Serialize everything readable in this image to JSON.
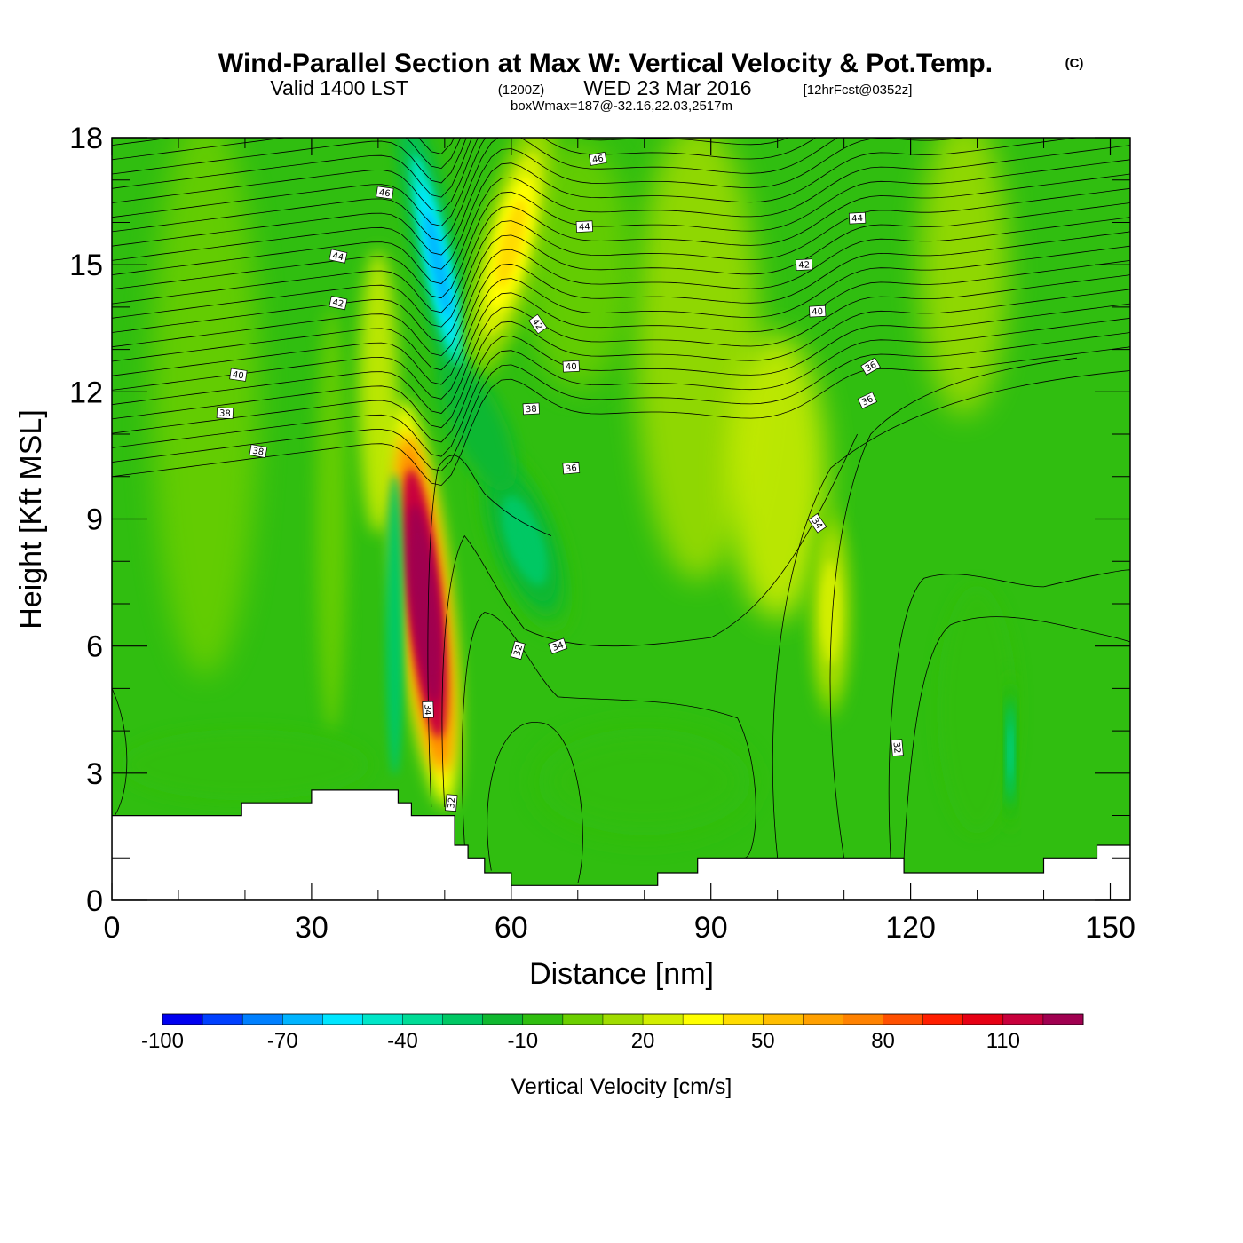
{
  "chart_data": {
    "type": "heatmap",
    "title": "Wind-Parallel Section at Max W: Vertical Velocity & Pot.Temp.",
    "copyright": "(C)",
    "subtitle_valid": "Valid 1400 LST",
    "subtitle_zulu": "(1200Z)",
    "subtitle_date": "WED 23 Mar 2016",
    "subtitle_fcst": "[12hrFcst@0352z]",
    "box_info": "boxWmax=187@-32.16,22.03,2517m",
    "xlabel": "Distance [nm]",
    "ylabel": "Height [Kft MSL]",
    "xlim": [
      0,
      153
    ],
    "ylim": [
      0,
      18
    ],
    "x_ticks": [
      0,
      30,
      60,
      90,
      120,
      150
    ],
    "y_ticks": [
      0,
      3,
      6,
      9,
      12,
      15,
      18
    ],
    "colorbar": {
      "title": "Vertical Velocity [cm/s]",
      "min": -100,
      "max": 130,
      "step": 10,
      "labels": [
        "-100",
        "-70",
        "-40",
        "-10",
        "20",
        "50",
        "80",
        "110"
      ],
      "label_values": [
        -100,
        -70,
        -40,
        -10,
        20,
        50,
        80,
        110
      ],
      "colors": [
        "#0000f0",
        "#0040ff",
        "#0080ff",
        "#00b4ff",
        "#00e6ff",
        "#00e6c8",
        "#00dc96",
        "#00c864",
        "#10b830",
        "#30be10",
        "#6ccf00",
        "#a0dc00",
        "#d2ee00",
        "#ffff00",
        "#ffdc00",
        "#ffbe00",
        "#ffa000",
        "#ff8200",
        "#ff5000",
        "#ff1e00",
        "#e60014",
        "#c8003c",
        "#a00050"
      ]
    },
    "velocity_features": [
      {
        "kind": "updraft",
        "x": 47,
        "y": 7.0,
        "w_cm_s": 187
      },
      {
        "kind": "downdraft",
        "x": 49,
        "y": 15.5,
        "w_cm_s": -70
      },
      {
        "kind": "updraft",
        "x": 60,
        "y": 16.5,
        "w_cm_s": 45
      },
      {
        "kind": "downdraft",
        "x": 62,
        "y": 7.5,
        "w_cm_s": -30
      },
      {
        "kind": "updraft",
        "x": 108,
        "y": 6.5,
        "w_cm_s": 28
      },
      {
        "kind": "downdraft",
        "x": 135,
        "y": 3.5,
        "w_cm_s": -35
      }
    ],
    "terrain": [
      [
        0,
        2.0
      ],
      [
        19.5,
        2.0
      ],
      [
        19.5,
        2.3
      ],
      [
        30,
        2.3
      ],
      [
        30,
        2.6
      ],
      [
        43,
        2.6
      ],
      [
        43,
        2.3
      ],
      [
        45,
        2.3
      ],
      [
        45,
        2.0
      ],
      [
        51.5,
        2.0
      ],
      [
        51.5,
        1.3
      ],
      [
        53.5,
        1.3
      ],
      [
        53.5,
        1.0
      ],
      [
        56,
        1.0
      ],
      [
        56,
        0.65
      ],
      [
        60,
        0.65
      ],
      [
        60,
        0.35
      ],
      [
        82,
        0.35
      ],
      [
        82,
        0.65
      ],
      [
        88,
        0.65
      ],
      [
        88,
        1.0
      ],
      [
        119,
        1.0
      ],
      [
        119,
        0.65
      ],
      [
        140,
        0.65
      ],
      [
        140,
        1.0
      ],
      [
        148,
        1.0
      ],
      [
        148,
        1.3
      ],
      [
        153,
        1.3
      ]
    ],
    "theta_contours": [
      {
        "theta": 32,
        "labels": [
          {
            "text": "32",
            "x": 61,
            "y": 5.9,
            "angle": 75
          },
          {
            "text": "32",
            "x": 51,
            "y": 2.3,
            "angle": 85
          },
          {
            "text": "32",
            "x": 118,
            "y": 3.6,
            "angle": -85
          }
        ]
      },
      {
        "theta": 34,
        "labels": [
          {
            "text": "34",
            "x": 47.5,
            "y": 4.5,
            "angle": -88
          },
          {
            "text": "34",
            "x": 67,
            "y": 6.0,
            "angle": 20
          },
          {
            "text": "34",
            "x": 106,
            "y": 8.9,
            "angle": -55
          }
        ]
      },
      {
        "theta": 36,
        "labels": [
          {
            "text": "36",
            "x": 69,
            "y": 10.2,
            "angle": 5
          },
          {
            "text": "36",
            "x": 113.5,
            "y": 11.8,
            "angle": 25
          },
          {
            "text": "36",
            "x": 114,
            "y": 12.6,
            "angle": 30
          }
        ]
      },
      {
        "theta": 38,
        "labels": [
          {
            "text": "38",
            "x": 17,
            "y": 11.5,
            "angle": -3
          },
          {
            "text": "38",
            "x": 22,
            "y": 10.6,
            "angle": -10
          },
          {
            "text": "38",
            "x": 63,
            "y": 11.6,
            "angle": 3
          }
        ]
      },
      {
        "theta": 40,
        "labels": [
          {
            "text": "40",
            "x": 19,
            "y": 12.4,
            "angle": -8
          },
          {
            "text": "40",
            "x": 69,
            "y": 12.6,
            "angle": 3
          },
          {
            "text": "40",
            "x": 106,
            "y": 13.9,
            "angle": 3
          }
        ]
      },
      {
        "theta": 42,
        "labels": [
          {
            "text": "42",
            "x": 34,
            "y": 14.1,
            "angle": -12
          },
          {
            "text": "42",
            "x": 64,
            "y": 13.6,
            "angle": -55
          },
          {
            "text": "42",
            "x": 104,
            "y": 15.0,
            "angle": 3
          }
        ]
      },
      {
        "theta": 44,
        "labels": [
          {
            "text": "44",
            "x": 34,
            "y": 15.2,
            "angle": -12
          },
          {
            "text": "44",
            "x": 71,
            "y": 15.9,
            "angle": 3
          },
          {
            "text": "44",
            "x": 112,
            "y": 16.1,
            "angle": 3
          }
        ]
      },
      {
        "theta": 46,
        "labels": [
          {
            "text": "46",
            "x": 41,
            "y": 16.7,
            "angle": -8
          },
          {
            "text": "46",
            "x": 73,
            "y": 17.5,
            "angle": 10
          }
        ]
      }
    ]
  }
}
